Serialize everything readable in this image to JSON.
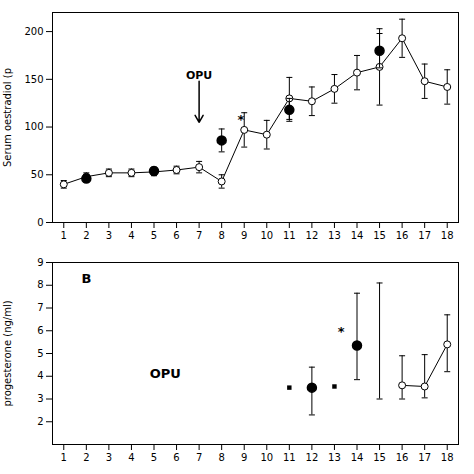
{
  "chart_data": [
    {
      "type": "errorbar",
      "ylabel": "Serum oestradiol (p",
      "xlim": [
        0.5,
        18.5
      ],
      "ylim": [
        0,
        220
      ],
      "xticks": [
        1,
        2,
        3,
        4,
        5,
        6,
        7,
        8,
        9,
        10,
        11,
        12,
        13,
        14,
        15,
        16,
        17,
        18
      ],
      "yticks": [
        0,
        50,
        100,
        150,
        200
      ],
      "grid": false,
      "series": [
        {
          "color": "black",
          "marker": "open_circle",
          "line_style": "solid",
          "x": [
            1,
            2,
            3,
            4,
            5,
            6,
            7,
            8,
            9,
            10,
            11,
            12,
            13,
            14,
            15,
            16,
            17,
            18
          ],
          "values": [
            40,
            48,
            52,
            52,
            53,
            55,
            58,
            43,
            97,
            92,
            130,
            127,
            140,
            157,
            163,
            193,
            148,
            142
          ],
          "error": [
            4,
            4,
            4,
            4,
            4,
            4,
            6,
            7,
            18,
            15,
            22,
            15,
            15,
            18,
            40,
            20,
            18,
            18
          ]
        },
        {
          "color": "black",
          "marker": "circle",
          "line_style": "none",
          "x": [
            2,
            5,
            8,
            11,
            15
          ],
          "values": [
            46,
            54,
            86,
            118,
            180
          ],
          "error": [
            4,
            4,
            12,
            12,
            18
          ]
        }
      ],
      "annotations": [
        {
          "text": "*",
          "x": 8.85,
          "y": 108
        },
        {
          "text": "OPU",
          "x": 7,
          "y": 148,
          "arrow_x": 7,
          "arrow_y": 105
        }
      ]
    },
    {
      "type": "errorbar",
      "ylabel": "progesterone (ng/ml)",
      "xlim": [
        0.5,
        18.5
      ],
      "ylim": [
        1,
        9
      ],
      "xticks": [
        1,
        2,
        3,
        4,
        5,
        6,
        7,
        8,
        9,
        10,
        11,
        12,
        13,
        14,
        15,
        16,
        17,
        18
      ],
      "yticks": [
        2,
        3,
        4,
        5,
        6,
        7,
        8,
        9
      ],
      "grid": false,
      "series": [
        {
          "color": "black",
          "marker": "open_circle",
          "line_style": "solid",
          "x": [
            16,
            17,
            18
          ],
          "values": [
            3.6,
            3.55,
            5.4
          ],
          "error_lo": [
            0.6,
            0.5,
            1.2
          ],
          "error_hi": [
            1.3,
            1.4,
            1.3
          ]
        },
        {
          "color": "black",
          "marker": "none",
          "line_style": "none",
          "x": [
            15
          ],
          "values": [
            3.6
          ],
          "error_lo": [
            0.6
          ],
          "error_hi": [
            4.5
          ]
        },
        {
          "color": "black",
          "marker": "circle",
          "line_style": "none",
          "x": [
            12,
            14
          ],
          "values": [
            3.5,
            5.35
          ],
          "error_lo": [
            1.2,
            1.5
          ],
          "error_hi": [
            0.9,
            2.3
          ]
        },
        {
          "color": "black",
          "marker": "square",
          "line_style": "none",
          "x": [
            11,
            13
          ],
          "values": [
            3.5,
            3.55
          ]
        }
      ],
      "annotations": [
        {
          "text": "OPU",
          "x": 5.5,
          "y": 4.1
        },
        {
          "text": "*",
          "x": 13.3,
          "y": 5.95
        },
        {
          "text": "B",
          "x": 2.0,
          "y": 8.3
        }
      ]
    }
  ]
}
